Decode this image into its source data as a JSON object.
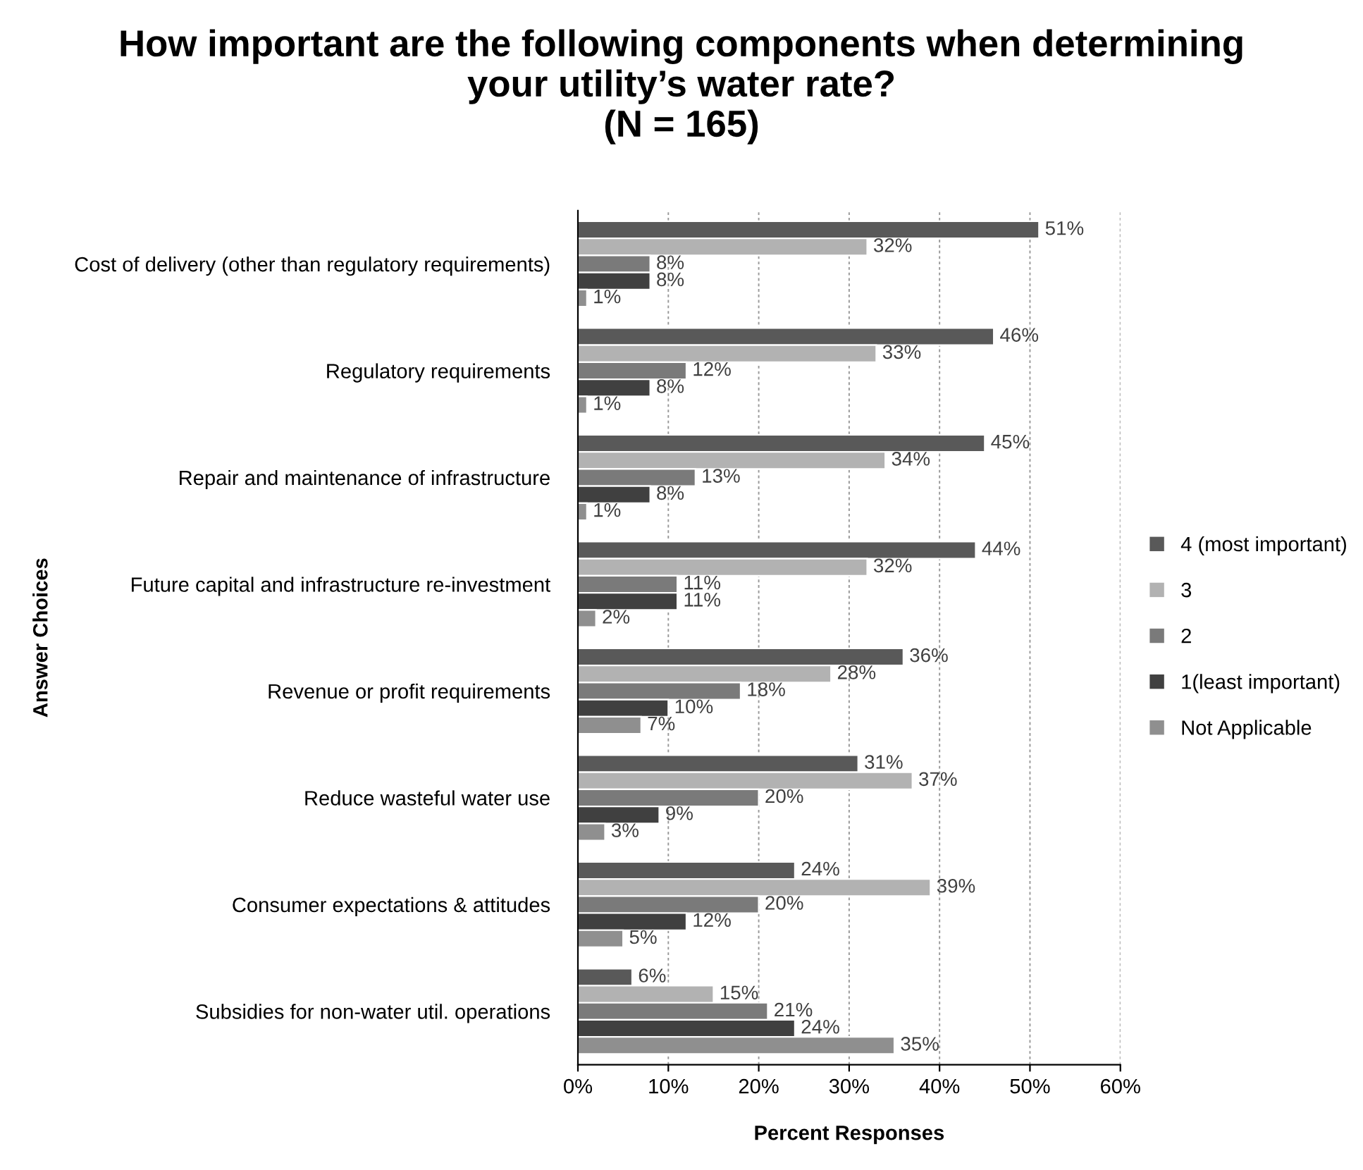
{
  "chart_data": {
    "type": "bar",
    "orientation": "horizontal",
    "title": "How important are the following components when determining\nyour utility’s water rate?\n(N = 165)",
    "xlabel": "Percent Responses",
    "ylabel": "Answer Choices",
    "categories": [
      "Cost of delivery (other than regulatory requirements)",
      "Regulatory requirements",
      "Repair and maintenance of infrastructure",
      "Future capital and infrastructure re-investment",
      "Revenue or profit requirements",
      "Reduce wasteful water use",
      "Consumer expectations & attitudes",
      "Subsidies for non-water util. operations"
    ],
    "series": [
      {
        "name": "4 (most important)",
        "color": "#595959",
        "values": [
          51,
          46,
          45,
          44,
          36,
          31,
          24,
          6
        ],
        "value_labels": [
          "51%",
          "46%",
          "45%",
          "44%",
          "36%",
          "31%",
          "24%",
          "6%"
        ]
      },
      {
        "name": "3",
        "color": "#b2b2b2",
        "values": [
          32,
          33,
          34,
          32,
          28,
          37,
          39,
          15
        ],
        "value_labels": [
          "32%",
          "33%",
          "34%",
          "32%",
          "28%",
          "37%",
          "39%",
          "15%"
        ]
      },
      {
        "name": "2",
        "color": "#7a7a7a",
        "values": [
          8,
          12,
          13,
          11,
          18,
          20,
          20,
          21
        ],
        "value_labels": [
          "8%",
          "12%",
          "13%",
          "11%",
          "18%",
          "20%",
          "20%",
          "21%"
        ]
      },
      {
        "name": "1(least important)",
        "color": "#404040",
        "values": [
          8,
          8,
          8,
          11,
          10,
          9,
          12,
          24
        ],
        "value_labels": [
          "8%",
          "8%",
          "8%",
          "11%",
          "10%",
          "9%",
          "12%",
          "24%"
        ]
      },
      {
        "name": "Not Applicable",
        "color": "#8f8f8f",
        "values": [
          1,
          1,
          1,
          2,
          7,
          3,
          5,
          35
        ],
        "value_labels": [
          "1%",
          "1%",
          "1%",
          "2%",
          "7%",
          "3%",
          "5%",
          "35%"
        ]
      }
    ],
    "xlim": [
      0,
      60
    ],
    "xticks": [
      {
        "value": 0,
        "label": "0%"
      },
      {
        "value": 10,
        "label": "10%"
      },
      {
        "value": 20,
        "label": "20%"
      },
      {
        "value": 30,
        "label": "30%"
      },
      {
        "value": 40,
        "label": "40%"
      },
      {
        "value": 50,
        "label": "50%"
      },
      {
        "value": 60,
        "label": "60%"
      }
    ],
    "grid": "x",
    "legend": "right"
  }
}
